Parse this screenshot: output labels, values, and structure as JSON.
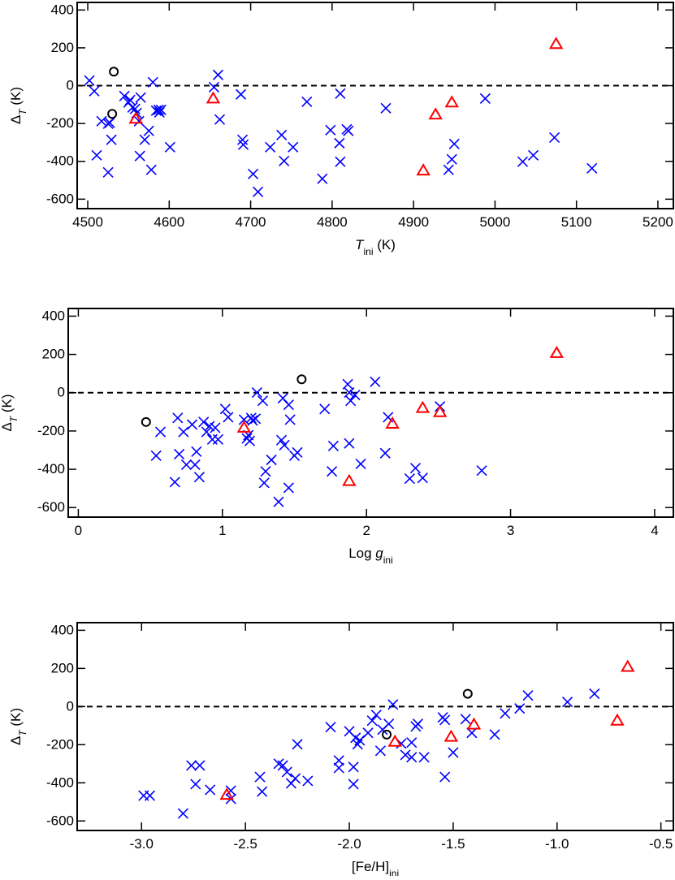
{
  "chart_data": [
    {
      "type": "scatter",
      "xlabel": [
        {
          "text": "T",
          "style": "italic"
        },
        {
          "text": "ini",
          "style": "sub"
        },
        {
          "text": " (K)",
          "style": "normal"
        }
      ],
      "ylabel": [
        {
          "text": "Δ",
          "style": "normal"
        },
        {
          "text": "T",
          "style": "sub-italic"
        },
        {
          "text": " (K)",
          "style": "normal"
        }
      ],
      "xlim": [
        4487,
        5219
      ],
      "ylim": [
        -650,
        440
      ],
      "xticks": [
        4500,
        4600,
        4700,
        4800,
        4900,
        5000,
        5100,
        5200
      ],
      "yticks": [
        -600,
        -400,
        -200,
        0,
        200,
        400
      ],
      "reference_line": 0,
      "series": [
        {
          "marker": "x",
          "color": "#0000ff",
          "x": [
            4502,
            4508,
            4517,
            4511,
            4525,
            4527,
            4529,
            4525,
            4545,
            4550,
            4552,
            4555,
            4558,
            4560,
            4563,
            4565,
            4564,
            4570,
            4575,
            4578,
            4580,
            4584,
            4587,
            4588,
            4590,
            4601,
            4655,
            4660,
            4662,
            4688,
            4690,
            4691,
            4703,
            4709,
            4724,
            4738,
            4741,
            4752,
            4769,
            4788,
            4798,
            4809,
            4810,
            4810,
            4818,
            4820,
            4866,
            4943,
            4947,
            4950,
            4988,
            5034,
            5047,
            5073,
            5119
          ],
          "y": [
            27,
            -29,
            -188,
            -368,
            -201,
            -196,
            -286,
            -458,
            -55,
            -89,
            -76,
            -115,
            -123,
            -145,
            -188,
            -63,
            -372,
            -286,
            -239,
            -445,
            18,
            -132,
            -128,
            -141,
            -128,
            -325,
            -8,
            57,
            -179,
            -46,
            -286,
            -312,
            -467,
            -561,
            -325,
            -261,
            -398,
            -325,
            -85,
            -492,
            -235,
            -304,
            -402,
            -42,
            -231,
            -239,
            -119,
            -445,
            -389,
            -308,
            -68,
            -402,
            -368,
            -274,
            -437
          ]
        },
        {
          "marker": "triangle",
          "color": "#ff0000",
          "x": [
            4559,
            4654,
            4912,
            4927,
            4947,
            5075
          ],
          "y": [
            -175,
            -68,
            -449,
            -153,
            -89,
            220
          ]
        },
        {
          "marker": "circle",
          "color": "#000000",
          "x": [
            4532,
            4530
          ],
          "y": [
            74,
            -149
          ]
        }
      ]
    },
    {
      "type": "scatter",
      "xlabel": [
        {
          "text": "Log ",
          "style": "normal"
        },
        {
          "text": "g",
          "style": "italic"
        },
        {
          "text": "ini",
          "style": "sub"
        }
      ],
      "ylabel": [
        {
          "text": "Δ",
          "style": "normal"
        },
        {
          "text": "T",
          "style": "sub-italic"
        },
        {
          "text": " (K)",
          "style": "normal"
        }
      ],
      "xlim": [
        -0.07,
        4.13
      ],
      "ylim": [
        -650,
        440
      ],
      "xticks": [
        0,
        1,
        2,
        3,
        4
      ],
      "yticks": [
        -600,
        -400,
        -200,
        0,
        200,
        400
      ],
      "reference_line": 0,
      "series": [
        {
          "marker": "x",
          "color": "#0000ff",
          "x": [
            0.57,
            0.54,
            0.67,
            0.69,
            0.7,
            0.73,
            0.75,
            0.79,
            0.81,
            0.82,
            0.84,
            0.87,
            0.89,
            0.91,
            0.93,
            0.95,
            0.97,
            1.02,
            1.04,
            1.15,
            1.17,
            1.18,
            1.19,
            1.2,
            1.21,
            1.23,
            1.24,
            1.28,
            1.3,
            1.29,
            1.39,
            1.42,
            1.41,
            1.43,
            1.46,
            1.47,
            1.46,
            1.34,
            1.5,
            1.52,
            1.71,
            1.77,
            1.76,
            1.88,
            1.89,
            1.87,
            1.92,
            1.88,
            1.96,
            2.06,
            2.13,
            2.15,
            2.3,
            2.34,
            2.39,
            2.51,
            2.8
          ],
          "y": [
            -205,
            -329,
            -467,
            -132,
            -321,
            -205,
            -376,
            -166,
            -376,
            -308,
            -441,
            -153,
            -205,
            -175,
            -244,
            -183,
            -244,
            -85,
            -128,
            -141,
            -239,
            -222,
            -252,
            -132,
            -145,
            -136,
            1,
            -42,
            -411,
            -471,
            -570,
            -29,
            -248,
            -274,
            -63,
            -141,
            -497,
            -351,
            -329,
            -312,
            -85,
            -278,
            -411,
            1,
            -42,
            44,
            -12,
            -265,
            -372,
            57,
            -316,
            -128,
            -449,
            -394,
            -445,
            -72,
            -407
          ]
        },
        {
          "marker": "triangle",
          "color": "#ff0000",
          "x": [
            1.15,
            1.88,
            2.18,
            2.39,
            2.51,
            3.32
          ],
          "y": [
            -183,
            -462,
            -162,
            -80,
            -102,
            207
          ]
        },
        {
          "marker": "circle",
          "color": "#000000",
          "x": [
            0.47,
            1.55
          ],
          "y": [
            -153,
            70
          ]
        }
      ]
    },
    {
      "type": "scatter",
      "xlabel": [
        {
          "text": "[Fe/H]",
          "style": "normal"
        },
        {
          "text": "ini",
          "style": "sub"
        }
      ],
      "ylabel": [
        {
          "text": "Δ",
          "style": "normal"
        },
        {
          "text": "T",
          "style": "sub-italic"
        },
        {
          "text": " (K)",
          "style": "normal"
        }
      ],
      "xlim": [
        -3.31,
        -0.44
      ],
      "ylim": [
        -650,
        440
      ],
      "xticks": [
        {
          "value": -3,
          "label": "-3.0"
        },
        -2.5,
        {
          "value": -2,
          "label": "-2.0"
        },
        -1.5,
        {
          "value": -1,
          "label": "-1.0"
        },
        -0.5
      ],
      "yticks": [
        -600,
        -400,
        -200,
        0,
        200,
        400
      ],
      "reference_line": 0,
      "series": [
        {
          "marker": "x",
          "color": "#0000ff",
          "x": [
            -2.99,
            -2.96,
            -2.76,
            -2.72,
            -2.74,
            -2.8,
            -2.67,
            -2.57,
            -2.57,
            -2.43,
            -2.42,
            -2.34,
            -2.32,
            -2.3,
            -2.28,
            -2.26,
            -2.25,
            -2.2,
            -2.09,
            -2.05,
            -2.05,
            -2.0,
            -1.98,
            -1.98,
            -1.97,
            -1.95,
            -1.96,
            -1.91,
            -1.89,
            -1.87,
            -1.85,
            -1.84,
            -1.81,
            -1.79,
            -1.75,
            -1.73,
            -1.7,
            -1.7,
            -1.68,
            -1.67,
            -1.64,
            -1.55,
            -1.54,
            -1.54,
            -1.5,
            -1.44,
            -1.41,
            -1.3,
            -1.25,
            -1.18,
            -1.14,
            -0.95,
            -0.82
          ],
          "y": [
            -467,
            -467,
            -309,
            -309,
            -407,
            -561,
            -437,
            -484,
            -441,
            -369,
            -446,
            -300,
            -309,
            -343,
            -403,
            -377,
            -198,
            -390,
            -108,
            -283,
            -322,
            -130,
            -317,
            -407,
            -164,
            -177,
            -198,
            -138,
            -74,
            -44,
            -232,
            -121,
            -91,
            11,
            -194,
            -254,
            -189,
            -266,
            -104,
            -91,
            -266,
            -57,
            -70,
            -369,
            -241,
            -66,
            -138,
            -147,
            -36,
            -10,
            58,
            24,
            67
          ]
        },
        {
          "marker": "triangle",
          "color": "#ff0000",
          "x": [
            -2.59,
            -1.78,
            -1.51,
            -1.4,
            -0.71,
            -0.66
          ],
          "y": [
            -463,
            -185,
            -159,
            -95,
            -74,
            208
          ]
        },
        {
          "marker": "circle",
          "color": "#000000",
          "x": [
            -1.82,
            -1.43
          ],
          "y": [
            -147,
            67
          ]
        }
      ]
    }
  ]
}
